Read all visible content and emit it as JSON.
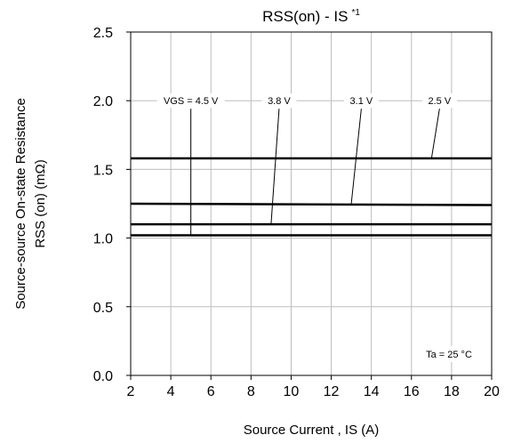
{
  "chart_data": {
    "type": "line",
    "title": "RSS(on) - IS",
    "title_superscript": "*1",
    "xlabel": "Source Current , IS (A)",
    "ylabel_line1": "Source-source On-state Resistance",
    "ylabel_line2": "RSS (on) (mΩ)",
    "xlim": [
      2,
      20
    ],
    "ylim": [
      0.0,
      2.5
    ],
    "x_ticks": [
      "2",
      "4",
      "6",
      "8",
      "10",
      "12",
      "14",
      "16",
      "18",
      "20"
    ],
    "y_ticks": [
      "0.0",
      "0.5",
      "1.0",
      "1.5",
      "2.0",
      "2.5"
    ],
    "grid": true,
    "series": [
      {
        "name": "VGS = 4.5 V",
        "x": [
          2,
          20
        ],
        "y": [
          1.02,
          1.02
        ]
      },
      {
        "name": "3.8 V",
        "x": [
          2,
          20
        ],
        "y": [
          1.1,
          1.1
        ]
      },
      {
        "name": "3.1 V",
        "x": [
          2,
          20
        ],
        "y": [
          1.25,
          1.24
        ]
      },
      {
        "name": "2.5 V",
        "x": [
          2,
          20
        ],
        "y": [
          1.58,
          1.58
        ]
      }
    ],
    "series_labels": [
      {
        "text": "VGS = 4.5 V",
        "at_x": 5,
        "label_y": 2.0,
        "target_x": 5,
        "target_y": 1.02
      },
      {
        "text": "3.8 V",
        "at_x": 9.4,
        "label_y": 2.0,
        "target_x": 9,
        "target_y": 1.1
      },
      {
        "text": "3.1 V",
        "at_x": 13.5,
        "label_y": 2.0,
        "target_x": 13,
        "target_y": 1.25
      },
      {
        "text": "2.5 V",
        "at_x": 17.4,
        "label_y": 2.0,
        "target_x": 17,
        "target_y": 1.58
      }
    ],
    "annotation": "Ta = 25 °C"
  }
}
